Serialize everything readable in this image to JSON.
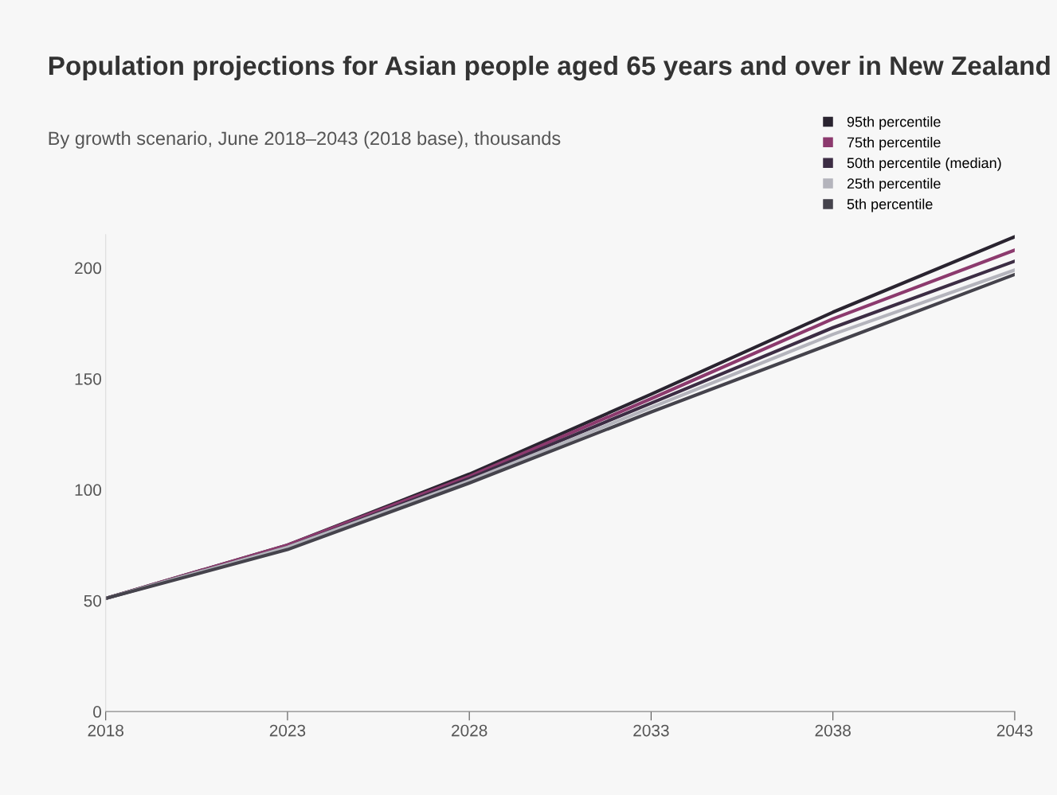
{
  "chart_data": {
    "type": "line",
    "title": "Population projections for Asian people aged 65 years and over in New Zealand",
    "subtitle": "By growth scenario, June 2018–2043 (2018 base), thousands",
    "x": [
      2018,
      2023,
      2028,
      2033,
      2038,
      2043
    ],
    "series": [
      {
        "name": "95th percentile",
        "color": "#2a2430",
        "values": [
          51,
          75,
          107,
          143,
          180,
          214
        ]
      },
      {
        "name": "75th percentile",
        "color": "#8c3a6e",
        "values": [
          51,
          75,
          106,
          141,
          177,
          208
        ]
      },
      {
        "name": "50th percentile (median)",
        "color": "#3c2d44",
        "values": [
          51,
          74,
          105,
          139,
          173,
          203
        ]
      },
      {
        "name": "25th percentile",
        "color": "#b4b4bc",
        "values": [
          51,
          74,
          104,
          137,
          170,
          199
        ]
      },
      {
        "name": "5th percentile",
        "color": "#45434c",
        "values": [
          51,
          73,
          103,
          135,
          166,
          197
        ]
      }
    ],
    "xlim": [
      2018,
      2043
    ],
    "xticks": [
      2018,
      2023,
      2028,
      2033,
      2038,
      2043
    ],
    "ylim": [
      0,
      215
    ],
    "yticks": [
      0,
      50,
      100,
      150,
      200
    ],
    "grid": false,
    "legend": "top right",
    "marker": "none",
    "line_style": "solid"
  }
}
